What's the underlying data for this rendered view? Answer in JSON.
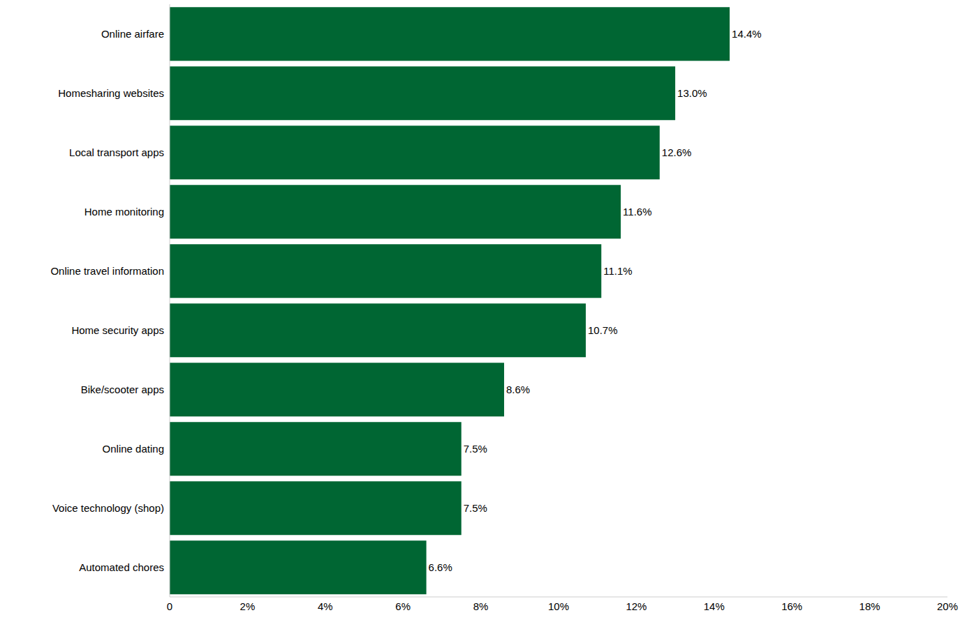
{
  "chart_data": {
    "type": "bar",
    "orientation": "horizontal",
    "categories": [
      "Online airfare",
      "Homesharing websites",
      "Local transport apps",
      "Home monitoring",
      "Online travel information",
      "Home security apps",
      "Bike/scooter apps",
      "Online dating",
      "Voice technology (shop)",
      "Automated chores"
    ],
    "values": [
      14.4,
      13.0,
      12.6,
      11.6,
      11.1,
      10.7,
      8.6,
      7.5,
      7.5,
      6.6
    ],
    "value_labels": [
      "14.4%",
      "13.0%",
      "12.6%",
      "11.6%",
      "11.1%",
      "10.7%",
      "8.6%",
      "7.5%",
      "7.5%",
      "6.6%"
    ],
    "data_labels": true,
    "color": "#006633",
    "xlim": [
      0,
      20
    ],
    "xticks": [
      0,
      {
        "value": 2,
        "label": "2%"
      },
      {
        "value": 4,
        "label": "4%"
      },
      {
        "value": 6,
        "label": "6%"
      },
      {
        "value": 8,
        "label": "8%"
      },
      {
        "value": 10,
        "label": "10%"
      },
      {
        "value": 12,
        "label": "12%"
      },
      {
        "value": 14,
        "label": "14%"
      },
      {
        "value": 16,
        "label": "16%"
      },
      {
        "value": 18,
        "label": "18%"
      },
      {
        "value": 20,
        "label": "20%"
      }
    ],
    "grid": false
  }
}
